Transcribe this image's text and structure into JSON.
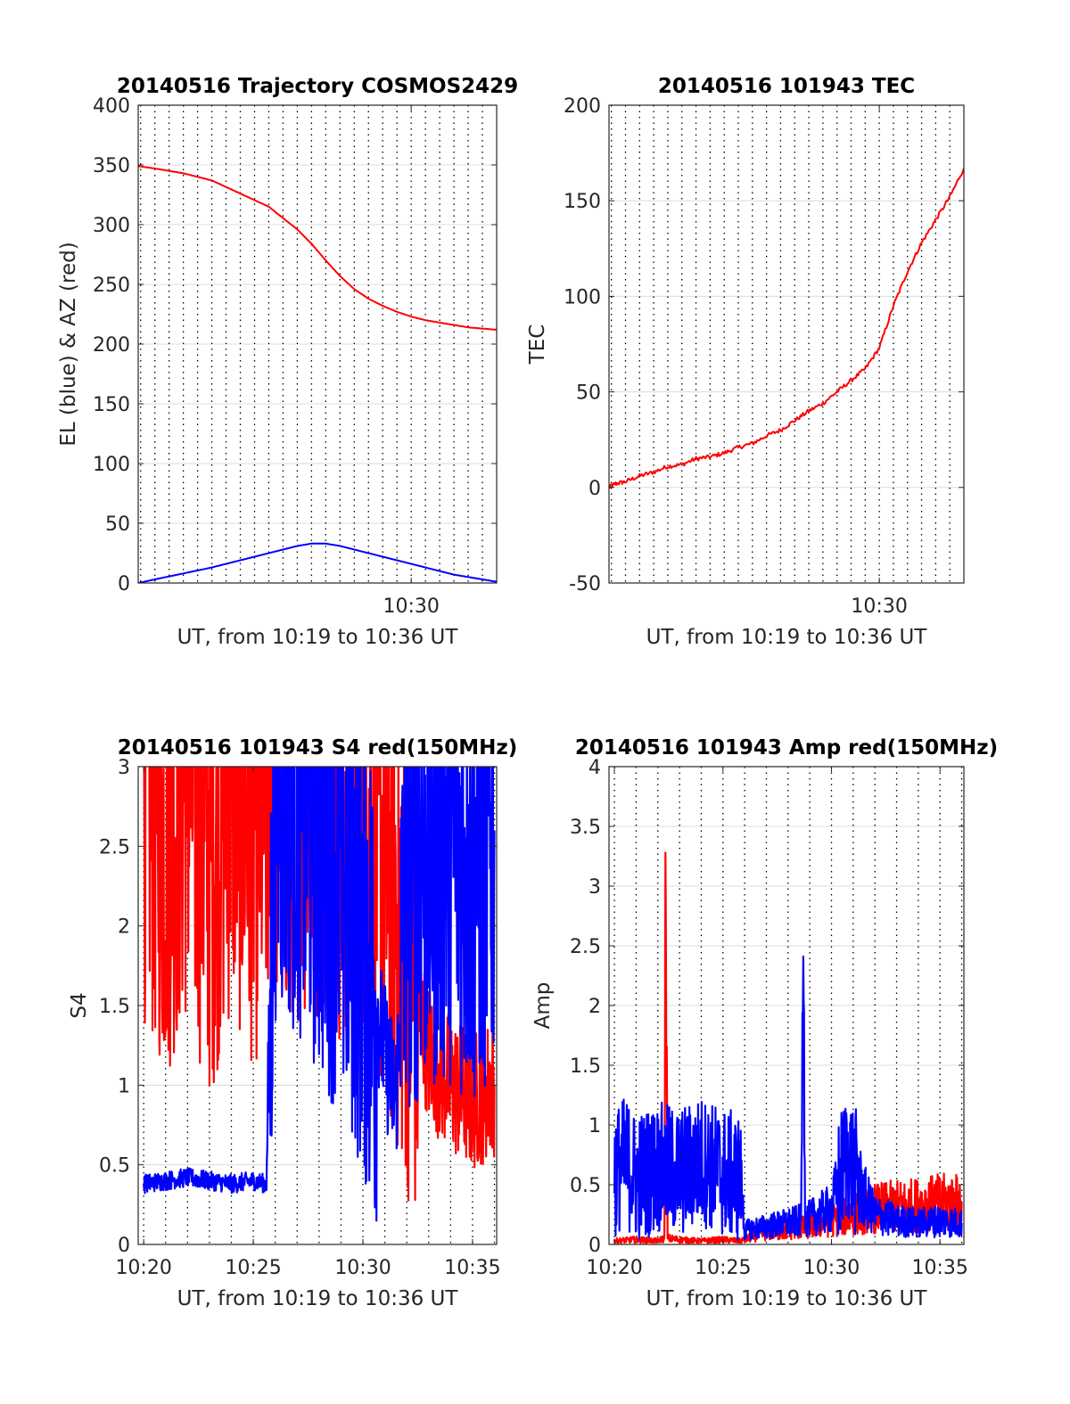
{
  "chart_data": [
    {
      "type": "line",
      "title": "20140516 Trajectory COSMOS2429",
      "xlabel": "UT, from 10:19 to 10:36 UT",
      "ylabel": "EL (blue) & AZ (red)",
      "xlim": [
        10.83,
        36.0
      ],
      "ylim": [
        0,
        400
      ],
      "yticks": [
        0,
        50,
        100,
        150,
        200,
        250,
        300,
        350,
        400
      ],
      "yticklabels": [
        "0",
        "50",
        "100",
        "150",
        "200",
        "250",
        "300",
        "350",
        "400"
      ],
      "xticks": [
        30
      ],
      "xticklabels": [
        "10:30"
      ],
      "grid": true,
      "series": [
        {
          "color": "#ff0000",
          "x": [
            10.83,
            12,
            14,
            16,
            18,
            20,
            22,
            23,
            24,
            25,
            26,
            27,
            28,
            29,
            30,
            31,
            32,
            33,
            34,
            35,
            36
          ],
          "values": [
            349,
            347,
            343,
            337,
            326,
            315,
            296,
            284,
            270,
            257,
            246,
            238,
            232,
            227,
            223,
            220,
            218,
            216,
            214,
            213,
            212
          ]
        },
        {
          "color": "#0000ff",
          "x": [
            10.83,
            12,
            14,
            16,
            18,
            19,
            20,
            21,
            22,
            23,
            24,
            25,
            26,
            27,
            28,
            29,
            30,
            31,
            32,
            33,
            34,
            35,
            36
          ],
          "values": [
            0,
            3,
            8,
            13,
            19,
            22,
            25,
            28,
            31,
            33,
            33,
            31,
            28,
            25,
            22,
            19,
            16,
            13,
            10,
            7,
            5,
            3,
            1
          ]
        }
      ]
    },
    {
      "type": "line",
      "title": "20140516 101943 TEC",
      "xlabel": "UT, from 10:19 to 10:36 UT",
      "ylabel": "TEC",
      "xlim": [
        10.83,
        36.0
      ],
      "ylim": [
        -50,
        200
      ],
      "yticks": [
        -50,
        0,
        50,
        100,
        150,
        200
      ],
      "yticklabels": [
        "-50",
        "0",
        "50",
        "100",
        "150",
        "200"
      ],
      "xticks": [
        30
      ],
      "xticklabels": [
        "10:30"
      ],
      "grid": true,
      "series": [
        {
          "color": "#ff0000",
          "x": [
            10.83,
            11.3,
            12,
            13,
            14,
            15,
            16,
            17,
            18,
            19,
            20,
            21,
            22,
            23,
            24,
            25,
            26,
            27,
            28,
            29,
            30,
            31,
            32,
            33,
            34,
            35,
            36
          ],
          "values": [
            0,
            2,
            3,
            6,
            8,
            11,
            12,
            15,
            16,
            18,
            21,
            23,
            27,
            30,
            35,
            40,
            44,
            50,
            56,
            62,
            73,
            95,
            113,
            128,
            140,
            152,
            167
          ]
        }
      ]
    },
    {
      "type": "line",
      "title": "20140516 101943 S4 red(150MHz)",
      "xlabel": "UT, from 10:19 to 10:36 UT",
      "ylabel": "S4",
      "xlim": [
        19.75,
        36.1
      ],
      "ylim": [
        0,
        3
      ],
      "yticks": [
        0,
        0.5,
        1,
        1.5,
        2,
        2.5,
        3
      ],
      "yticklabels": [
        "0",
        "0.5",
        "1",
        "1.5",
        "2",
        "2.5",
        "3"
      ],
      "xticks": [
        20,
        25,
        30,
        35
      ],
      "xticklabels": [
        "10:20",
        "10:25",
        "10:30",
        "10:35"
      ],
      "grid": true,
      "series": [
        {
          "color": "#ff0000",
          "x": [
            20,
            21,
            22,
            23,
            24,
            25,
            26,
            27,
            28,
            29,
            30,
            31,
            32,
            33,
            34,
            35,
            36
          ],
          "values": [
            3.0,
            2.6,
            3.0,
            2.5,
            3.0,
            2.7,
            2.9,
            3.0,
            3.0,
            2.8,
            2.9,
            2.4,
            1.9,
            1.2,
            1.0,
            0.9,
            1.0
          ]
        },
        {
          "color": "#0000ff",
          "x": [
            20,
            21,
            22,
            23,
            24,
            25,
            25.6,
            26,
            27,
            28,
            29,
            30,
            31,
            31.5,
            32,
            33,
            34,
            35,
            36
          ],
          "values": [
            0.38,
            0.4,
            0.42,
            0.4,
            0.38,
            0.4,
            0.38,
            3.0,
            2.9,
            2.6,
            2.4,
            2.0,
            1.2,
            0.9,
            2.4,
            2.5,
            2.6,
            2.4,
            2.6
          ]
        }
      ]
    },
    {
      "type": "line",
      "title": "20140516 101943 Amp red(150MHz)",
      "xlabel": "UT, from 10:19 to 10:36 UT",
      "ylabel": "Amp",
      "xlim": [
        19.75,
        36.1
      ],
      "ylim": [
        0,
        4
      ],
      "yticks": [
        0,
        0.5,
        1,
        1.5,
        2,
        2.5,
        3,
        3.5,
        4
      ],
      "yticklabels": [
        "0",
        "0.5",
        "1",
        "1.5",
        "2",
        "2.5",
        "3",
        "3.5",
        "4"
      ],
      "xticks": [
        20,
        25,
        30,
        35
      ],
      "xticklabels": [
        "10:20",
        "10:25",
        "10:30",
        "10:35"
      ],
      "grid": true,
      "series": [
        {
          "color": "#ff0000",
          "x": [
            20,
            21,
            22,
            22.3,
            22.35,
            22.45,
            23,
            24,
            25,
            25.8,
            27,
            28,
            29,
            30,
            31,
            32,
            33,
            34,
            35,
            36
          ],
          "values": [
            0.03,
            0.04,
            0.03,
            0.05,
            3.25,
            0.05,
            0.04,
            0.03,
            0.04,
            0.03,
            0.1,
            0.12,
            0.15,
            0.2,
            0.25,
            0.3,
            0.32,
            0.33,
            0.35,
            0.35
          ]
        },
        {
          "color": "#0000ff",
          "x": [
            20,
            20.5,
            21,
            22,
            23,
            24,
            25,
            25.8,
            26,
            27,
            28,
            28.6,
            28.7,
            28.8,
            29,
            30,
            30.7,
            31,
            31.5,
            32,
            33,
            34,
            35,
            36
          ],
          "values": [
            0.6,
            0.7,
            0.55,
            0.65,
            0.6,
            0.7,
            0.6,
            0.55,
            0.12,
            0.15,
            0.18,
            0.2,
            2.45,
            0.2,
            0.22,
            0.3,
            0.75,
            0.65,
            0.4,
            0.25,
            0.2,
            0.18,
            0.2,
            0.18
          ]
        }
      ]
    }
  ]
}
